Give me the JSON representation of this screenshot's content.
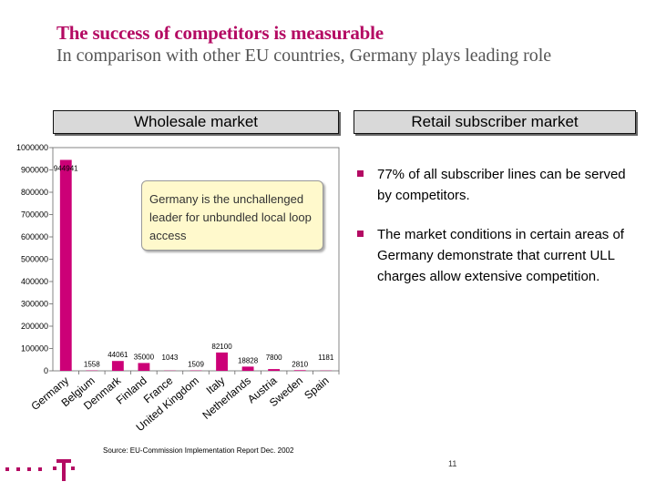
{
  "header": {
    "title": "The success of competitors is measurable",
    "subtitle": "In comparison with other EU countries, Germany plays leading role"
  },
  "panels": {
    "left_header": "Wholesale market",
    "right_header": "Retail subscriber market"
  },
  "note": "Germany is the unchallenged leader for unbundled local loop access",
  "bullets": [
    "77% of all subscriber lines can  be served by competitors.",
    "The market conditions in certain areas of Germany demonstrate that current ULL charges allow extensive competition."
  ],
  "source": "Source: EU-Commission Implementation Report Dec. 2002",
  "page_number": "11",
  "colors": {
    "accent": "#b40a63",
    "bar": "#cc0077"
  },
  "chart_data": {
    "type": "bar",
    "categories": [
      "Germany",
      "Belgium",
      "Denmark",
      "Finland",
      "France",
      "United Kingdom",
      "Italy",
      "Netherlands",
      "Austria",
      "Sweden",
      "Spain"
    ],
    "values": [
      944941,
      1558,
      44061,
      35000,
      1043,
      1509,
      82100,
      18828,
      7800,
      2810,
      1181
    ],
    "data_labels": [
      "944941",
      "1558",
      "44061",
      "35000",
      "1043",
      "1509",
      "82100",
      "18828",
      "7800",
      "2810",
      "1181"
    ],
    "yticks": [
      "0",
      "100000",
      "200000",
      "300000",
      "400000",
      "500000",
      "600000",
      "700000",
      "800000",
      "900000",
      "1000000"
    ],
    "ylim": [
      0,
      1000000
    ],
    "grid": false,
    "title": "",
    "xlabel": "",
    "ylabel": ""
  }
}
